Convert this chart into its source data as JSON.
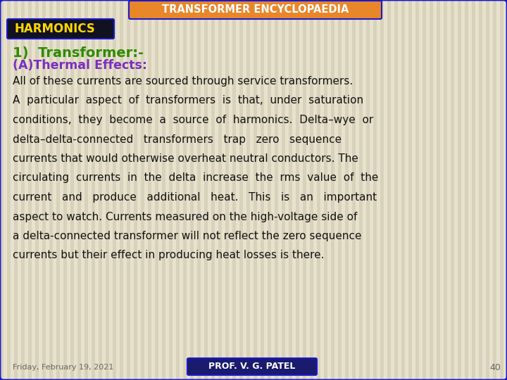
{
  "title": "TRANSFORMER ENCYCLOPAEDIA",
  "title_bg": "#E8872A",
  "title_color": "#FFFFFF",
  "harmonics_label": "HARMONICS",
  "harmonics_bg": "#111122",
  "harmonics_color": "#FFD700",
  "heading1_color": "#2E8B00",
  "heading1": "1)  Transformer:-",
  "heading2_color": "#7B2FBE",
  "heading2": "(A)Thermal Effects:",
  "body_color": "#111111",
  "body_lines": [
    "All of these currents are sourced through service transformers.",
    "A  particular  aspect  of  transformers  is  that,  under  saturation",
    "conditions,  they  become  a  source  of  harmonics.  Delta–wye  or",
    "delta–delta-connected   transformers   trap   zero   sequence",
    "currents that would otherwise overheat neutral conductors. The",
    "circulating  currents  in  the  delta  increase  the  rms  value  of  the",
    "current   and   produce   additional   heat.   This   is   an   important",
    "aspect to watch. Currents measured on the high-voltage side of",
    "a delta-connected transformer will not reflect the zero sequence",
    "currents but their effect in producing heat losses is there."
  ],
  "footer_date": "Friday, February 19, 2021",
  "footer_prof": "PROF. V. G. PATEL",
  "footer_prof_bg": "#1A1A6E",
  "footer_page": "40",
  "bg_color": "#E8E2CC",
  "border_color": "#1A1ACC",
  "stripe_light": "#E8E2CC",
  "stripe_dark": "#D8D2BC"
}
